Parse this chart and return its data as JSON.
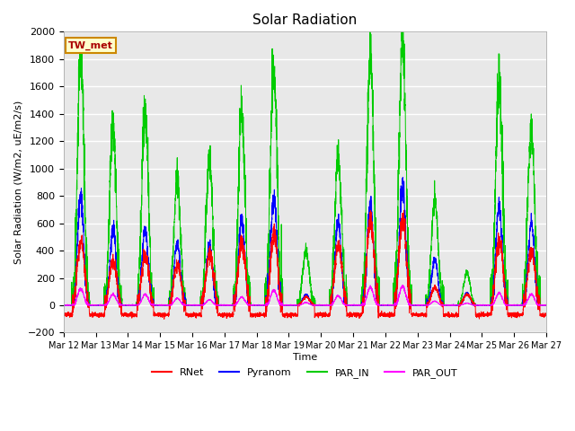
{
  "title": "Solar Radiation",
  "ylabel": "Solar Radiation (W/m2, uE/m2/s)",
  "xlabel": "Time",
  "ylim": [
    -200,
    2000
  ],
  "background_color": "#e8e8e8",
  "grid_color": "white",
  "colors": {
    "RNet": "#ff0000",
    "Pyranom": "#0000ff",
    "PAR_IN": "#00cc00",
    "PAR_OUT": "#ff00ff"
  },
  "xtick_labels": [
    "Mar 12",
    "Mar 13",
    "Mar 14",
    "Mar 15",
    "Mar 16",
    "Mar 17",
    "Mar 18",
    "Mar 19",
    "Mar 20",
    "Mar 21",
    "Mar 22",
    "Mar 23",
    "Mar 24",
    "Mar 25",
    "Mar 26",
    "Mar 27"
  ],
  "site_label": "TW_met",
  "site_label_color": "#aa0000",
  "site_label_bg": "#ffffcc",
  "site_label_border": "#cc8800",
  "yticks": [
    -200,
    0,
    200,
    400,
    600,
    800,
    1000,
    1200,
    1400,
    1600,
    1800,
    2000
  ],
  "n_points_per_day": 288,
  "n_days": 15,
  "day_peaks_PAR_IN": [
    1800,
    1320,
    1420,
    900,
    1060,
    1380,
    1750,
    400,
    1090,
    1840,
    1960,
    790,
    240,
    1650,
    1300
  ],
  "day_peaks_Pyranom": [
    800,
    550,
    560,
    450,
    440,
    620,
    790,
    80,
    610,
    740,
    880,
    340,
    90,
    730,
    600
  ],
  "day_peaks_RNet": [
    480,
    320,
    360,
    290,
    380,
    450,
    510,
    60,
    440,
    620,
    630,
    130,
    80,
    480,
    400
  ],
  "day_peaks_PAR_OUT": [
    120,
    80,
    80,
    50,
    40,
    60,
    110,
    20,
    70,
    130,
    140,
    30,
    15,
    90,
    80
  ],
  "night_RNet": -70
}
